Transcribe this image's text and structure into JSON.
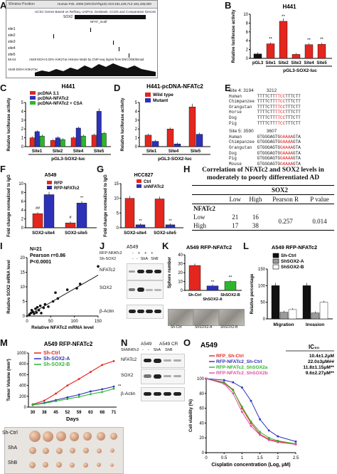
{
  "labels": {
    "A": "A",
    "B": "B",
    "C": "C",
    "D": "D",
    "E": "E",
    "F": "F",
    "G": "G",
    "H": "H",
    "I": "I",
    "J": "J",
    "K": "K",
    "L": "L",
    "M": "M",
    "N": "N",
    "O": "O"
  },
  "panelA": {
    "window": "Window Position",
    "ucsc1": "UCSC Genes Based on RefSeq, UniProt, GenBank, CCDS and Comparative Genomics",
    "assembly": "Human Feb. 2009 (GRCh37/hg19)   chr3:181,429,712-181,435,000",
    "gene": "SOX2",
    "motif": "NFAT_motif",
    "sites": [
      "site1",
      "site2",
      "site3",
      "site4",
      "site5"
    ],
    "track": "A549 EtOH 0.02% H3K27ac Histone Mods by ChIP-seq Signal from ENCODE/Broad",
    "trackLabel": "A549 EtOH H3K27ac",
    "scale": "58.64"
  },
  "panelB": {
    "title": "H441",
    "ylabel": "Relative luciferase activity",
    "xlabels": [
      "pGL3",
      "Site1",
      "Site2",
      "Site3",
      "Site4",
      "Site5"
    ],
    "group": "pGL3-SOX2-luc",
    "yticks": [
      "0",
      "2",
      "4",
      "6",
      "8",
      "10"
    ],
    "sig": [
      "",
      "**",
      "**",
      "",
      "**",
      "**"
    ]
  },
  "panelC": {
    "title": "H441",
    "ylabel": "Relative luciferase activity",
    "legend": [
      "pcDNA 3.1",
      "pcDNA-NFATc2",
      "pcDNA-NFATc2 + CSA"
    ],
    "xlabels": [
      "Site1",
      "Site2",
      "Site4",
      "Site5"
    ],
    "group": "pGL3-SOX2-luc",
    "yticks": [
      "0",
      "1",
      "2",
      "3",
      "4",
      "5"
    ]
  },
  "panelD": {
    "title": "H441-pcDNA-NFATc2",
    "ylabel": "Relative luciferase activity",
    "legend": [
      "Wild type",
      "Mutant"
    ],
    "xlabels": [
      "Site1",
      "Site4",
      "Site5"
    ],
    "group": "pGL3-SOX2-luc",
    "yticks": [
      "0",
      "1",
      "2",
      "3",
      "4",
      "5"
    ]
  },
  "panelE": {
    "site4": "Site 4: 3194",
    "site4end": "3212",
    "site5": "Site 5: 3590",
    "site5end": "3607",
    "species": [
      "Human",
      "Chimpanzee",
      "Orangutan",
      "Horse",
      "Dog",
      "Pig"
    ],
    "species5": [
      "Human",
      "Chimpanzee",
      "Orangutan",
      "Dog",
      "Pig",
      "Mouse"
    ],
    "seq4": [
      "TTTTCTTTTCCTTTCTT",
      "TTTTCTTTTCCTTTCTT",
      "TTTTCTTTTCCTTTCTT",
      "TTTTCTTTTCCTTTCTT",
      "TTTTCTTTTCCTTTCTT",
      "TTTTCTTTTCCTTTCTT"
    ],
    "seq5": [
      "GTGGGAGTGGAAAAGTA",
      "GTGGGAGTGGAAAAGTA",
      "GTGGGAGTGGAAAAGTA",
      "GTGGGAGTGGAAAAGTA",
      "GTGGGAGTGGAAAAGTA",
      "GTGGGAGTGGAAAAGTA"
    ]
  },
  "panelF": {
    "title": "A549",
    "ylabel": "Fold change normalized to IgG",
    "legend": [
      "RFP",
      "RFP-NFATc2"
    ],
    "xlabels": [
      "SOX2-site4",
      "SOX2-site5"
    ],
    "yticks": [
      "0",
      "2",
      "4",
      "6",
      "8",
      "10"
    ],
    "sig": [
      "##",
      "**",
      "#",
      "**"
    ]
  },
  "panelG": {
    "title": "HCC827",
    "ylabel": "Fold change normalized to IgG",
    "legend": [
      "Ctrl",
      "shNFATc2"
    ],
    "xlabels": [
      "SOX2-site4",
      "SOX2-site5"
    ],
    "yticks": [
      "0",
      "5",
      "10",
      "15"
    ],
    "sig": [
      "",
      "**",
      "",
      "**"
    ]
  },
  "panelH": {
    "caption": "Correlation of NFATc2 and SOX2 levels in moderately to poorly differentiated AD",
    "sox2": "SOX2",
    "cols": [
      "Low",
      "High",
      "Pearson R",
      "P value"
    ],
    "rowHead": "NFATc2",
    "rows": [
      [
        "Low",
        "21",
        "16"
      ],
      [
        "High",
        "17",
        "38"
      ]
    ],
    "r": "0.257",
    "p": "0.014"
  },
  "panelI": {
    "n": "N=21",
    "r": "Pearson r=0.86",
    "p": "P<0.0001",
    "ylabel": "Relative SOX2 mRNA level",
    "xlabel": "Relative NFATc2 mRNA level",
    "xticks": [
      "0",
      "50",
      "100",
      "150"
    ],
    "yticks": [
      "0",
      "5",
      "10",
      "15",
      "20"
    ]
  },
  "panelJ": {
    "cell": "A549",
    "rowLabels": [
      "RFP-NFATc2",
      "Sh-SOX2"
    ],
    "signs1": [
      "-",
      "+",
      "+",
      "+"
    ],
    "signs2": [
      "-",
      "-",
      "ShA",
      "ShB"
    ],
    "bands": [
      "NFATc2",
      "SOX2",
      "β-Actin"
    ]
  },
  "panelK": {
    "title": "A549 RFP-NFATc2",
    "ylabel": "Sphere number",
    "xlabels": [
      "Sh-Ctrl",
      "ShSOX2-A",
      "ShSOX2-B"
    ],
    "yticks": [
      "0",
      "10",
      "20",
      "30",
      "40"
    ],
    "sig": [
      "",
      "**",
      "**"
    ],
    "images": [
      "Sh-Ctrl",
      "ShSOX2-A",
      "ShSOX2-B"
    ]
  },
  "panelL": {
    "title": "A549 RFP-NFATc2",
    "ylabel": "Relative percentage",
    "legend": [
      "Sh-Ctrl",
      "ShSOX2-A",
      "ShSOX2-B"
    ],
    "xlabels": [
      "Migration",
      "Invasion"
    ],
    "yticks": [
      "0",
      "50",
      "100",
      "150"
    ]
  },
  "panelM": {
    "title": "A549 RFP-NFATc2",
    "ylabel": "Tumor Volume (mm³)",
    "xlabel": "Days",
    "legend": [
      "Sh-Ctrl",
      "Sh-SOX2-A",
      "Sh-SOX2-B"
    ],
    "xticks": [
      "30",
      "38",
      "45",
      "52",
      "59",
      "63",
      "68",
      "71"
    ],
    "yticks": [
      "0",
      "200",
      "400",
      "600",
      "800",
      "1000"
    ],
    "sig": "**",
    "rows": [
      "Sh-Ctrl",
      "ShA",
      "ShB"
    ]
  },
  "panelN": {
    "header": [
      "A549",
      "A549 CR"
    ],
    "rowLabel": "ShNFATc2",
    "signs": [
      "-",
      "-",
      "ShA",
      "ShB"
    ],
    "bands": [
      "NFATc2",
      "SOX2",
      "β-Actin"
    ]
  },
  "panelO": {
    "title": "A549",
    "ic50": "IC₅₀",
    "legend": [
      "RFP_Sh-Ctrl",
      "RFP-NFATc2_Sh-Ctrl",
      "RFP-NFATc2_ShSOX2a",
      "RFP-NFATc2_ShSOX2b"
    ],
    "ic50vals": [
      "10.4±1.2μM",
      "22.0±3μM##",
      "11.8±1.15μM**",
      "9.6±2.27μM**"
    ],
    "ylabel": "Cell viability (%)",
    "xlabel": "Cisplatin concentration (Log, μM)",
    "xticks": [
      "0",
      "0.5",
      "1",
      "1.5",
      "2",
      "2.5"
    ],
    "yticks": [
      "0",
      "20",
      "40",
      "60",
      "80",
      "100"
    ]
  },
  "colors": {
    "red": "#e3261e",
    "blue": "#2c31b8",
    "green": "#2db52d",
    "black": "#111111",
    "grey": "#9a9a9a"
  },
  "chart_data": [
    {
      "type": "bar",
      "categories": [
        "pGL3",
        "Site1",
        "Site2",
        "Site3",
        "Site4",
        "Site5"
      ],
      "values": [
        1.0,
        3.3,
        8.4,
        0.9,
        3.1,
        3.2
      ],
      "ylim": [
        0,
        10
      ]
    },
    {
      "type": "bar",
      "categories": [
        "Site1",
        "Site2",
        "Site4",
        "Site5"
      ],
      "series": [
        {
          "name": "pcDNA 3.1",
          "values": [
            1.0,
            0.7,
            1.0,
            1.3
          ]
        },
        {
          "name": "pcDNA-NFATc2",
          "values": [
            1.7,
            1.0,
            2.1,
            4.0
          ]
        },
        {
          "name": "pcDNA-NFATc2 + CSA",
          "values": [
            1.2,
            0.8,
            1.2,
            1.5
          ]
        }
      ],
      "ylim": [
        0,
        5
      ]
    },
    {
      "type": "bar",
      "categories": [
        "Site1",
        "Site4",
        "Site5"
      ],
      "series": [
        {
          "name": "Wild type",
          "values": [
            1.3,
            2.0,
            4.5
          ]
        },
        {
          "name": "Mutant",
          "values": [
            0.6,
            0.3,
            1.4
          ]
        }
      ],
      "ylim": [
        0,
        5
      ]
    },
    {
      "type": "bar",
      "categories": [
        "SOX2-site4",
        "SOX2-site5"
      ],
      "series": [
        {
          "name": "RFP",
          "values": [
            3.2,
            1.1
          ]
        },
        {
          "name": "RFP-NFATc2",
          "values": [
            7.5,
            5.6
          ]
        }
      ],
      "ylim": [
        0,
        10
      ]
    },
    {
      "type": "bar",
      "categories": [
        "SOX2-site4",
        "SOX2-site5"
      ],
      "series": [
        {
          "name": "Ctrl",
          "values": [
            10.0,
            9.8
          ]
        },
        {
          "name": "shNFATc2",
          "values": [
            1.0,
            1.0
          ]
        }
      ],
      "ylim": [
        0,
        15
      ]
    },
    {
      "type": "scatter",
      "x": [
        5,
        8,
        10,
        12,
        15,
        18,
        20,
        22,
        25,
        28,
        30,
        35,
        38,
        45,
        55,
        60,
        65,
        85,
        105,
        112,
        150
      ],
      "y": [
        0.5,
        1,
        2,
        1.5,
        0.8,
        2.5,
        1.2,
        3,
        2,
        3.5,
        1,
        2.8,
        4,
        3.2,
        5,
        8,
        6,
        9,
        9.5,
        11,
        17
      ],
      "xlim": [
        0,
        150
      ],
      "ylim": [
        0,
        20
      ]
    },
    {
      "type": "bar",
      "categories": [
        "Sh-Ctrl",
        "ShSOX2-A",
        "ShSOX2-B"
      ],
      "values": [
        28,
        5,
        10
      ],
      "ylim": [
        0,
        40
      ]
    },
    {
      "type": "bar",
      "categories": [
        "Migration",
        "Invasion"
      ],
      "series": [
        {
          "name": "Sh-Ctrl",
          "values": [
            100,
            100
          ]
        },
        {
          "name": "ShSOX2-A",
          "values": [
            20,
            18
          ]
        },
        {
          "name": "ShSOX2-B",
          "values": [
            28,
            50
          ]
        }
      ],
      "ylim": [
        0,
        150
      ]
    },
    {
      "type": "line",
      "x": [
        30,
        38,
        45,
        52,
        59,
        63,
        68,
        71
      ],
      "series": [
        {
          "name": "Sh-Ctrl",
          "values": [
            50,
            120,
            250,
            400,
            520,
            650,
            780,
            850
          ]
        },
        {
          "name": "Sh-SOX2-A",
          "values": [
            40,
            80,
            130,
            180,
            230,
            290,
            330,
            380
          ]
        },
        {
          "name": "Sh-SOX2-B",
          "values": [
            40,
            70,
            110,
            150,
            190,
            240,
            280,
            340
          ]
        }
      ],
      "ylim": [
        0,
        1000
      ]
    },
    {
      "type": "line",
      "x": [
        0,
        0.5,
        0.75,
        1,
        1.25,
        1.5,
        1.75,
        2,
        2.5
      ],
      "series": [
        {
          "name": "RFP_Sh-Ctrl",
          "values": [
            100,
            95,
            85,
            60,
            40,
            25,
            18,
            15,
            12
          ]
        },
        {
          "name": "RFP-NFATc2_Sh-Ctrl",
          "values": [
            100,
            98,
            95,
            88,
            70,
            45,
            30,
            22,
            15
          ]
        },
        {
          "name": "RFP-NFATc2_ShSOX2a",
          "values": [
            100,
            94,
            84,
            62,
            42,
            28,
            20,
            16,
            12
          ]
        },
        {
          "name": "RFP-NFATc2_ShSOX2b",
          "values": [
            100,
            93,
            80,
            55,
            36,
            24,
            17,
            14,
            11
          ]
        }
      ],
      "ylim": [
        0,
        100
      ]
    }
  ]
}
